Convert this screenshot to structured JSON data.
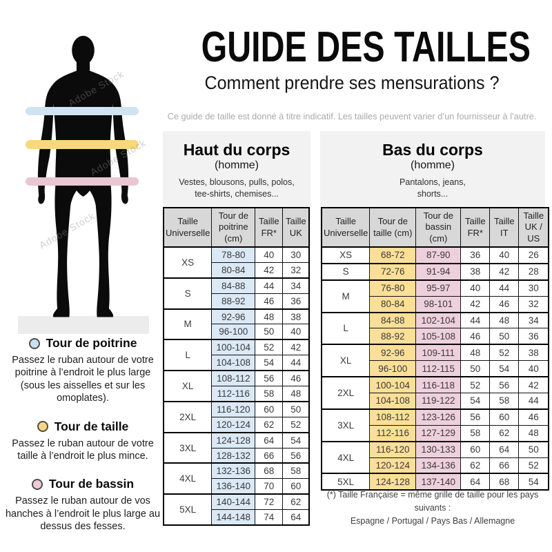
{
  "header": {
    "title": "GUIDE DES TAILLES",
    "subtitle": "Comment prendre ses mensurations ?",
    "disclaimer": "Ce guide de taille est donné à titre indicatif. Les tailles peuvent varier d’un fournisseur à l’autre."
  },
  "watermark": "Adobe Stock",
  "figure": {
    "bands": [
      {
        "name": "tour-de-poitrine",
        "color": "#cfe3f1"
      },
      {
        "name": "tour-de-taille",
        "color": "#f8d77e"
      },
      {
        "name": "tour-de-bassin",
        "color": "#eac5d2"
      }
    ]
  },
  "legend": [
    {
      "title": "Tour de poitrine",
      "color": "#c9e0f0",
      "desc": "Passez le ruban autour de votre poitrine à l’endroit le plus large (sous les aisselles et sur les omoplates)."
    },
    {
      "title": "Tour de taille",
      "color": "#f8d77e",
      "desc": "Passez le ruban autour de votre taille à l’endroit le plus mince."
    },
    {
      "title": "Tour de bassin",
      "color": "#f0c9d7",
      "desc": "Passez le ruban autour de vos hanches à l’endroit le plus large au dessus des fesses."
    }
  ],
  "tables": [
    {
      "id": "upper",
      "title": "Haut du corps",
      "gender": "(homme)",
      "items": "Vestes, blousons, pulls, polos,\ntee-shirts, chemises...",
      "columns": [
        "Taille Universelle",
        "Tour de poitrine (cm)",
        "Taille FR*",
        "Taille UK"
      ],
      "highlight_cols": {
        "0": "#dbe9f6"
      },
      "groups": [
        {
          "size": "XS",
          "rows": [
            [
              "78-80",
              "40",
              "30"
            ],
            [
              "80-84",
              "42",
              "32"
            ]
          ]
        },
        {
          "size": "S",
          "rows": [
            [
              "84-88",
              "44",
              "34"
            ],
            [
              "88-92",
              "46",
              "36"
            ]
          ]
        },
        {
          "size": "M",
          "rows": [
            [
              "92-96",
              "48",
              "38"
            ],
            [
              "96-100",
              "50",
              "40"
            ]
          ]
        },
        {
          "size": "L",
          "rows": [
            [
              "100-104",
              "52",
              "42"
            ],
            [
              "104-108",
              "54",
              "44"
            ]
          ]
        },
        {
          "size": "XL",
          "rows": [
            [
              "108-112",
              "56",
              "46"
            ],
            [
              "112-116",
              "58",
              "48"
            ]
          ]
        },
        {
          "size": "2XL",
          "rows": [
            [
              "116-120",
              "60",
              "50"
            ],
            [
              "120-124",
              "62",
              "52"
            ]
          ]
        },
        {
          "size": "3XL",
          "rows": [
            [
              "124-128",
              "64",
              "54"
            ],
            [
              "128-132",
              "66",
              "56"
            ]
          ]
        },
        {
          "size": "4XL",
          "rows": [
            [
              "132-136",
              "68",
              "58"
            ],
            [
              "136-140",
              "70",
              "60"
            ]
          ]
        },
        {
          "size": "5XL",
          "rows": [
            [
              "140-144",
              "72",
              "62"
            ],
            [
              "144-148",
              "74",
              "64"
            ]
          ]
        }
      ]
    },
    {
      "id": "lower",
      "title": "Bas du corps",
      "gender": "(homme)",
      "items": "Pantalons, jeans,\nshorts...",
      "columns": [
        "Taille Universelle",
        "Tour de taille (cm)",
        "Tour de bassin (cm)",
        "Taille FR*",
        "Taille IT",
        "Taille UK / US"
      ],
      "highlight_cols": {
        "0": "#fbdf97",
        "1": "#eed0dc"
      },
      "groups": [
        {
          "size": "XS",
          "rows": [
            [
              "68-72",
              "87-90",
              "36",
              "40",
              "26"
            ]
          ]
        },
        {
          "size": "S",
          "rows": [
            [
              "72-76",
              "91-94",
              "38",
              "42",
              "28"
            ]
          ]
        },
        {
          "size": "M",
          "rows": [
            [
              "76-80",
              "95-97",
              "40",
              "44",
              "30"
            ],
            [
              "80-84",
              "98-101",
              "42",
              "46",
              "32"
            ]
          ]
        },
        {
          "size": "L",
          "rows": [
            [
              "84-88",
              "102-104",
              "44",
              "48",
              "34"
            ],
            [
              "88-92",
              "105-108",
              "46",
              "50",
              "36"
            ]
          ]
        },
        {
          "size": "XL",
          "rows": [
            [
              "92-96",
              "109-111",
              "48",
              "52",
              "38"
            ],
            [
              "96-100",
              "112-115",
              "50",
              "54",
              "40"
            ]
          ]
        },
        {
          "size": "2XL",
          "rows": [
            [
              "100-104",
              "116-118",
              "52",
              "56",
              "42"
            ],
            [
              "104-108",
              "119-122",
              "54",
              "58",
              "44"
            ]
          ]
        },
        {
          "size": "3XL",
          "rows": [
            [
              "108-112",
              "123-126",
              "56",
              "60",
              "46"
            ],
            [
              "112-116",
              "127-129",
              "58",
              "62",
              "48"
            ]
          ]
        },
        {
          "size": "4XL",
          "rows": [
            [
              "116-120",
              "130-133",
              "60",
              "64",
              "50"
            ],
            [
              "120-124",
              "134-136",
              "62",
              "66",
              "52"
            ]
          ]
        },
        {
          "size": "5XL",
          "rows": [
            [
              "124-128",
              "137-140",
              "64",
              "68",
              "54"
            ]
          ]
        }
      ]
    }
  ],
  "footnote": "(*) Taille Française = même grille de taille pour les pays suivants :\nEspagne / Portugal / Pays Bas / Allemagne"
}
